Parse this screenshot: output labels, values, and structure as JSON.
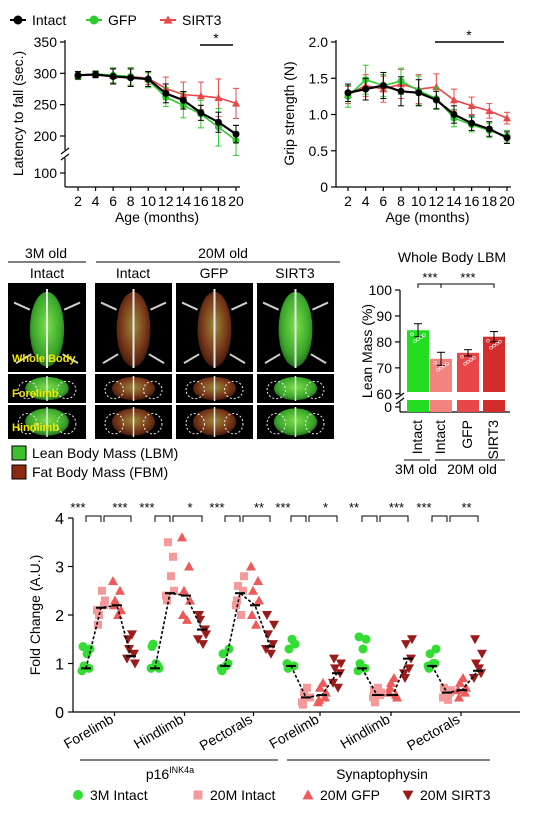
{
  "colors": {
    "intact": "#000000",
    "gfp": "#2ecc2e",
    "sirt3": "#e8484a",
    "m3": "#33dd33",
    "m20i": "#f49a9a",
    "m20g": "#ee5a5a",
    "m20s": "#9b1b1b"
  },
  "legend_top": [
    {
      "label": "Intact",
      "icon": "black-dot"
    },
    {
      "label": "GFP",
      "icon": "green-dot"
    },
    {
      "label": "SIRT3",
      "icon": "red-triangle"
    }
  ],
  "chart_data": [
    {
      "type": "line",
      "ylabel": "Latency to fall (sec.)",
      "xlabel": "Age (months)",
      "x": [
        2,
        4,
        6,
        8,
        10,
        12,
        14,
        16,
        18,
        20
      ],
      "x_tick_labels": [
        "2",
        "4",
        "6",
        "8",
        "10",
        "12",
        "14",
        "16",
        "18",
        "20"
      ],
      "y_ticks": [
        "100",
        "200",
        "250",
        "300",
        "350"
      ],
      "y_break": true,
      "ylim_upper": [
        180,
        350
      ],
      "significance": "*",
      "series": [
        {
          "name": "Intact",
          "values": [
            297,
            298,
            295,
            293,
            291,
            268,
            257,
            237,
            222,
            203
          ],
          "err": [
            6,
            5,
            12,
            14,
            12,
            15,
            14,
            12,
            16,
            14
          ]
        },
        {
          "name": "GFP",
          "values": [
            296,
            299,
            297,
            295,
            289,
            262,
            249,
            235,
            214,
            193
          ],
          "err": [
            6,
            5,
            12,
            14,
            12,
            15,
            20,
            22,
            30,
            24
          ]
        },
        {
          "name": "SIRT3",
          "values": [
            297,
            299,
            296,
            295,
            292,
            276,
            266,
            264,
            261,
            252
          ],
          "err": [
            6,
            5,
            12,
            14,
            10,
            18,
            20,
            22,
            30,
            24
          ]
        }
      ]
    },
    {
      "type": "line",
      "ylabel": "Grip strength (N)",
      "xlabel": "Age (months)",
      "x": [
        2,
        4,
        6,
        8,
        10,
        12,
        14,
        16,
        18,
        20
      ],
      "x_tick_labels": [
        "2",
        "4",
        "6",
        "8",
        "10",
        "12",
        "14",
        "16",
        "18",
        "20"
      ],
      "y_ticks": [
        "0",
        "0.5",
        "1.0",
        "1.5",
        "2.0"
      ],
      "ylim": [
        0,
        2.0
      ],
      "significance": "*",
      "series": [
        {
          "name": "Intact",
          "values": [
            1.3,
            1.35,
            1.4,
            1.32,
            1.3,
            1.2,
            1.0,
            0.88,
            0.8,
            0.68
          ],
          "err": [
            0.12,
            0.15,
            0.18,
            0.2,
            0.18,
            0.12,
            0.12,
            0.1,
            0.1,
            0.08
          ]
        },
        {
          "name": "GFP",
          "values": [
            1.25,
            1.48,
            1.4,
            1.46,
            1.33,
            1.22,
            0.95,
            0.86,
            0.78,
            0.7
          ],
          "err": [
            0.15,
            0.2,
            0.15,
            0.18,
            0.2,
            0.15,
            0.12,
            0.1,
            0.1,
            0.08
          ]
        },
        {
          "name": "SIRT3",
          "values": [
            1.27,
            1.4,
            1.35,
            1.42,
            1.35,
            1.38,
            1.2,
            1.12,
            1.05,
            0.95
          ],
          "err": [
            0.12,
            0.15,
            0.18,
            0.2,
            0.2,
            0.18,
            0.15,
            0.12,
            0.1,
            0.08
          ]
        }
      ]
    },
    {
      "type": "bar",
      "title": "Whole Body LBM",
      "ylabel": "Lean Mass (%)",
      "categories": [
        "Intact",
        "Intact",
        "GFP",
        "SIRT3"
      ],
      "values": [
        84.5,
        73.5,
        75.8,
        82.0
      ],
      "err": [
        2.5,
        2.5,
        1.2,
        2.0
      ],
      "y_ticks": [
        "0",
        "60",
        "70",
        "80",
        "90",
        "100"
      ],
      "ylim_upper": [
        58,
        100
      ],
      "group_labels": [
        "3M old",
        "20M old"
      ],
      "significance": [
        "***",
        "***"
      ]
    },
    {
      "type": "scatter",
      "ylabel": "Fold Change (A.U.)",
      "y_ticks": [
        "0",
        "1",
        "2",
        "3",
        "4"
      ],
      "ylim": [
        0,
        4
      ],
      "categories": [
        "Forelimb",
        "Hindlimb",
        "Pectorals",
        "Forelimb",
        "Hindlimb",
        "Pectorals"
      ],
      "groups": [
        {
          "label": "p16",
          "sup": "INK4a"
        },
        {
          "label": "Synaptophysin",
          "sup": ""
        }
      ],
      "legend": [
        {
          "label": "3M Intact",
          "icon": "green-dot"
        },
        {
          "label": "20M Intact",
          "icon": "pink-square"
        },
        {
          "label": "20M GFP",
          "icon": "red-triangle"
        },
        {
          "label": "20M SIRT3",
          "icon": "darkred-down-triangle"
        }
      ],
      "significance": [
        [
          "***",
          "***"
        ],
        [
          "***",
          "*"
        ],
        [
          "***",
          "**"
        ],
        [
          "***",
          "*"
        ],
        [
          "**",
          "***"
        ],
        [
          "***",
          "**"
        ]
      ],
      "medians": [
        [
          0.9,
          2.15,
          2.2,
          1.15
        ],
        [
          0.9,
          2.45,
          2.4,
          1.7
        ],
        [
          0.95,
          2.45,
          2.2,
          1.35
        ],
        [
          0.95,
          0.3,
          0.35,
          0.8
        ],
        [
          0.9,
          0.35,
          0.35,
          1.1
        ],
        [
          0.95,
          0.4,
          0.45,
          0.85
        ]
      ],
      "series": [
        {
          "name": "3M Intact",
          "values": [
            [
              0.85,
              0.9,
              0.95,
              1.3,
              1.35,
              1.2
            ],
            [
              0.9,
              0.95,
              1.4,
              0.9,
              1.35,
              1.0
            ],
            [
              0.9,
              1.0,
              1.2,
              1.3,
              0.85,
              0.95
            ],
            [
              1.0,
              0.95,
              1.3,
              1.4,
              0.9,
              1.5
            ],
            [
              0.85,
              0.9,
              1.0,
              1.5,
              1.55,
              1.3
            ],
            [
              0.95,
              1.0,
              1.2,
              1.3,
              0.9,
              1.0
            ]
          ]
        },
        {
          "name": "20M Intact",
          "values": [
            [
              2.1,
              2.2,
              2.0,
              2.3,
              1.8,
              2.5
            ],
            [
              2.4,
              3.2,
              3.5,
              2.5,
              2.3,
              2.8
            ],
            [
              2.2,
              2.5,
              2.6,
              2.8,
              2.3,
              2.0
            ],
            [
              0.2,
              0.3,
              0.4,
              0.3,
              0.15,
              0.5
            ],
            [
              0.3,
              0.35,
              0.2,
              0.4,
              0.45,
              0.5
            ],
            [
              0.3,
              0.4,
              0.35,
              0.45,
              0.5,
              0.25
            ]
          ]
        },
        {
          "name": "20M GFP",
          "values": [
            [
              2.7,
              2.5,
              2.3,
              2.1,
              2.2,
              2.0
            ],
            [
              3.6,
              3.0,
              2.5,
              2.3,
              2.0,
              1.9
            ],
            [
              3.0,
              2.7,
              2.5,
              2.3,
              2.0,
              1.8
            ],
            [
              0.2,
              0.3,
              0.5,
              0.4,
              0.25,
              0.6
            ],
            [
              0.4,
              0.35,
              0.6,
              0.3,
              0.5,
              0.7
            ],
            [
              0.45,
              0.4,
              0.6,
              0.5,
              0.3,
              0.7
            ]
          ]
        },
        {
          "name": "20M SIRT3",
          "values": [
            [
              1.1,
              1.2,
              1.3,
              1.0,
              1.5,
              1.6
            ],
            [
              1.5,
              1.7,
              1.9,
              1.6,
              2.0,
              1.4
            ],
            [
              1.3,
              1.4,
              1.6,
              1.8,
              2.0,
              1.2
            ],
            [
              0.6,
              0.8,
              0.9,
              1.0,
              1.1,
              0.5
            ],
            [
              0.8,
              1.1,
              1.4,
              1.5,
              0.7,
              0.9
            ],
            [
              0.7,
              0.8,
              1.0,
              1.2,
              1.5,
              0.9
            ]
          ]
        }
      ]
    }
  ],
  "images": {
    "col_headers": [
      "3M old",
      "20M old"
    ],
    "sub_headers": [
      "Intact",
      "Intact",
      "GFP",
      "SIRT3"
    ],
    "row_labels": [
      "Whole Body",
      "Forelimb",
      "Hindlimb"
    ],
    "legend": [
      {
        "label": "Lean Body Mass (LBM)",
        "color": "#3fbf2f"
      },
      {
        "label": "Fat Body Mass (FBM)",
        "color": "#8a2a12"
      }
    ]
  }
}
